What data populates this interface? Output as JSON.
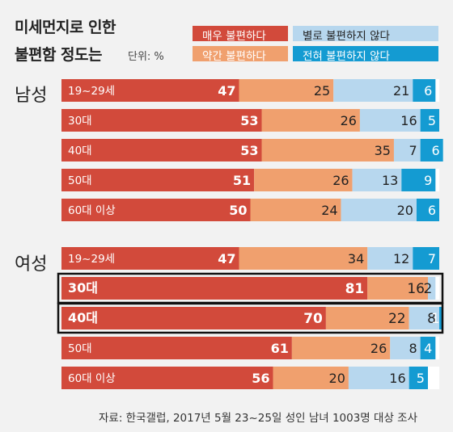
{
  "title_line1": "미세먼지로 인한",
  "title_line2": "불편함 정도는",
  "unit": "단위: %",
  "legend": [
    {
      "label": "매우 불편하다",
      "color": "#d24a3b"
    },
    {
      "label": "약간 불편하다",
      "color": "#f0a06e"
    },
    {
      "label": "별로 불편하지 않다",
      "color": "#b7d7ee"
    },
    {
      "label": "전혀 불편하지 않다",
      "color": "#149bd2"
    }
  ],
  "groups": [
    {
      "label": "남성"
    },
    {
      "label": "여성"
    }
  ],
  "chart_data": {
    "type": "bar",
    "stacked": true,
    "orientation": "horizontal",
    "title": "미세먼지로 인한 불편함 정도는",
    "unit": "%",
    "series_names": [
      "매우 불편하다",
      "약간 불편하다",
      "별로 불편하지 않다",
      "전혀 불편하지 않다"
    ],
    "rows": [
      {
        "group": "남성",
        "label": "19~29세",
        "values": [
          47,
          25,
          21,
          6
        ],
        "highlight": false
      },
      {
        "group": "남성",
        "label": "30대",
        "values": [
          53,
          26,
          16,
          5
        ],
        "highlight": false
      },
      {
        "group": "남성",
        "label": "40대",
        "values": [
          53,
          35,
          7,
          6
        ],
        "highlight": false
      },
      {
        "group": "남성",
        "label": "50대",
        "values": [
          51,
          26,
          13,
          9
        ],
        "highlight": false
      },
      {
        "group": "남성",
        "label": "60대 이상",
        "values": [
          50,
          24,
          20,
          6
        ],
        "highlight": false
      },
      {
        "group": "여성",
        "label": "19~29세",
        "values": [
          47,
          34,
          12,
          7
        ],
        "highlight": false
      },
      {
        "group": "여성",
        "label": "30대",
        "values": [
          81,
          16,
          2,
          0
        ],
        "value_labels": [
          "81",
          "16",
          "2",
          ""
        ],
        "highlight": true
      },
      {
        "group": "여성",
        "label": "40대",
        "values": [
          70,
          22,
          8,
          1
        ],
        "highlight": true
      },
      {
        "group": "여성",
        "label": "50대",
        "values": [
          61,
          26,
          8,
          4
        ],
        "highlight": false
      },
      {
        "group": "여성",
        "label": "60대 이상",
        "values": [
          56,
          20,
          16,
          5
        ],
        "highlight": false
      }
    ]
  },
  "source": "자료: 한국갤럽, 2017년 5월 23~25일 성인 남녀 1003명 대상 조사"
}
